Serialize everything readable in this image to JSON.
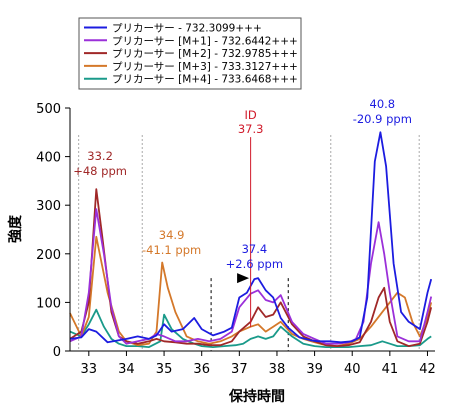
{
  "chart_data": {
    "type": "line",
    "xlabel": "保持時間",
    "ylabel": "強度",
    "xlim": [
      32.5,
      42.2
    ],
    "ylim": [
      0,
      500
    ],
    "xticks": [
      33,
      34,
      35,
      36,
      37,
      38,
      39,
      40,
      41,
      42
    ],
    "yticks": [
      0,
      100,
      200,
      300,
      400,
      500
    ],
    "legend_position": "top-left",
    "grid": false,
    "series": [
      {
        "name": "プリカーサー - 732.3099+++",
        "color": "#1c1ce0",
        "x": [
          32.5,
          32.8,
          33.0,
          33.2,
          33.5,
          33.8,
          34.0,
          34.3,
          34.6,
          34.8,
          35.0,
          35.2,
          35.5,
          35.8,
          36.0,
          36.3,
          36.6,
          36.8,
          37.0,
          37.2,
          37.4,
          37.5,
          37.7,
          37.9,
          38.1,
          38.3,
          38.6,
          38.9,
          39.1,
          39.4,
          39.7,
          40.0,
          40.2,
          40.4,
          40.6,
          40.75,
          40.9,
          41.1,
          41.3,
          41.5,
          41.8,
          42.0,
          42.1
        ],
        "y": [
          25,
          28,
          45,
          40,
          18,
          22,
          25,
          30,
          25,
          32,
          55,
          40,
          45,
          68,
          45,
          32,
          40,
          48,
          110,
          120,
          148,
          150,
          125,
          110,
          68,
          48,
          28,
          22,
          20,
          20,
          18,
          20,
          28,
          110,
          390,
          450,
          380,
          180,
          80,
          60,
          45,
          120,
          148
        ]
      },
      {
        "name": "プリカーサー [M+1] - 732.6442+++",
        "color": "#9b30d9",
        "x": [
          32.5,
          32.8,
          33.0,
          33.2,
          33.4,
          33.6,
          33.8,
          34.0,
          34.3,
          34.6,
          34.8,
          35.0,
          35.3,
          35.6,
          35.9,
          36.2,
          36.5,
          36.8,
          37.0,
          37.3,
          37.5,
          37.7,
          37.9,
          38.1,
          38.4,
          38.7,
          39.0,
          39.3,
          39.6,
          39.9,
          40.1,
          40.3,
          40.5,
          40.7,
          40.85,
          41.0,
          41.2,
          41.5,
          41.8,
          42.0,
          42.1
        ],
        "y": [
          20,
          30,
          120,
          292,
          200,
          90,
          30,
          15,
          20,
          25,
          35,
          30,
          20,
          20,
          25,
          20,
          25,
          40,
          90,
          118,
          125,
          105,
          100,
          115,
          60,
          35,
          25,
          15,
          15,
          18,
          25,
          60,
          180,
          265,
          200,
          120,
          30,
          20,
          20,
          80,
          112
        ]
      },
      {
        "name": "プリカーサー [M+2] - 732.9785+++",
        "color": "#a02828",
        "x": [
          32.5,
          32.8,
          33.0,
          33.2,
          33.35,
          33.6,
          33.8,
          34.0,
          34.3,
          34.6,
          34.8,
          35.0,
          35.3,
          35.6,
          35.9,
          36.2,
          36.5,
          36.8,
          37.0,
          37.3,
          37.5,
          37.7,
          37.9,
          38.1,
          38.4,
          38.7,
          39.0,
          39.3,
          39.6,
          39.9,
          40.2,
          40.5,
          40.7,
          40.85,
          41.0,
          41.2,
          41.5,
          41.8,
          42.0,
          42.1
        ],
        "y": [
          25,
          40,
          100,
          333,
          240,
          80,
          30,
          20,
          15,
          20,
          25,
          20,
          18,
          15,
          15,
          12,
          12,
          20,
          40,
          60,
          90,
          70,
          75,
          100,
          55,
          30,
          20,
          12,
          10,
          12,
          18,
          60,
          110,
          130,
          60,
          20,
          10,
          15,
          60,
          90
        ]
      },
      {
        "name": "プリカーサー [M+3] - 733.3127+++",
        "color": "#d4782a",
        "x": [
          32.5,
          32.8,
          33.0,
          33.2,
          33.5,
          33.8,
          34.0,
          34.3,
          34.6,
          34.8,
          34.95,
          35.1,
          35.3,
          35.6,
          35.9,
          36.2,
          36.5,
          36.8,
          37.0,
          37.3,
          37.5,
          37.7,
          37.9,
          38.1,
          38.4,
          38.7,
          39.0,
          39.3,
          39.6,
          39.9,
          40.2,
          40.5,
          40.8,
          41.0,
          41.2,
          41.4,
          41.6,
          41.8,
          42.0,
          42.1
        ],
        "y": [
          78,
          30,
          70,
          235,
          120,
          40,
          20,
          12,
          15,
          40,
          182,
          130,
          80,
          30,
          20,
          15,
          20,
          30,
          40,
          50,
          55,
          40,
          50,
          60,
          35,
          25,
          18,
          12,
          10,
          15,
          25,
          50,
          80,
          100,
          120,
          110,
          60,
          30,
          70,
          100
        ]
      },
      {
        "name": "プリカーサー [M+4] - 733.6468+++",
        "color": "#1a9a8a",
        "x": [
          32.5,
          32.8,
          33.0,
          33.2,
          33.4,
          33.6,
          33.8,
          34.0,
          34.3,
          34.6,
          34.9,
          35.0,
          35.2,
          35.5,
          35.8,
          36.0,
          36.3,
          36.6,
          36.9,
          37.1,
          37.3,
          37.5,
          37.7,
          37.9,
          38.1,
          38.4,
          38.7,
          39.0,
          39.3,
          39.6,
          39.9,
          40.2,
          40.5,
          40.8,
          41.0,
          41.2,
          41.5,
          41.8,
          42.0,
          42.1
        ],
        "y": [
          40,
          30,
          55,
          85,
          50,
          25,
          15,
          10,
          10,
          8,
          20,
          75,
          45,
          25,
          15,
          10,
          8,
          10,
          12,
          15,
          25,
          30,
          25,
          30,
          50,
          30,
          15,
          10,
          8,
          8,
          8,
          10,
          12,
          20,
          15,
          10,
          10,
          12,
          25,
          30
        ]
      }
    ],
    "vlines": [
      {
        "x": 32.73,
        "style": "dotted"
      },
      {
        "x": 34.42,
        "style": "dotted"
      },
      {
        "x": 36.25,
        "style": "dashed-dark",
        "ymax": 150
      },
      {
        "x": 38.3,
        "style": "dashed-dark",
        "ymax": 150
      },
      {
        "x": 39.43,
        "style": "dotted"
      },
      {
        "x": 41.78,
        "style": "dotted"
      }
    ],
    "id_line": {
      "x": 37.3,
      "y_top": 440,
      "label_top": "ID",
      "label_bottom": "37.3",
      "color": "#d01a2a"
    },
    "marker": {
      "x": 37.1,
      "y": 150
    },
    "annotations": [
      {
        "x": 33.3,
        "y": 393,
        "line1": "33.2",
        "line2": "+48 ppm",
        "color": "#a02828"
      },
      {
        "x": 35.2,
        "y": 230,
        "line1": "34.9",
        "line2": "-41.1 ppm",
        "color": "#d4782a"
      },
      {
        "x": 37.4,
        "y": 202,
        "line1": "37.4",
        "line2": "+2.6 ppm",
        "color": "#1c1ce0"
      },
      {
        "x": 40.8,
        "y": 500,
        "line1": "40.8",
        "line2": "-20.9 ppm",
        "color": "#1c1ce0"
      }
    ]
  }
}
